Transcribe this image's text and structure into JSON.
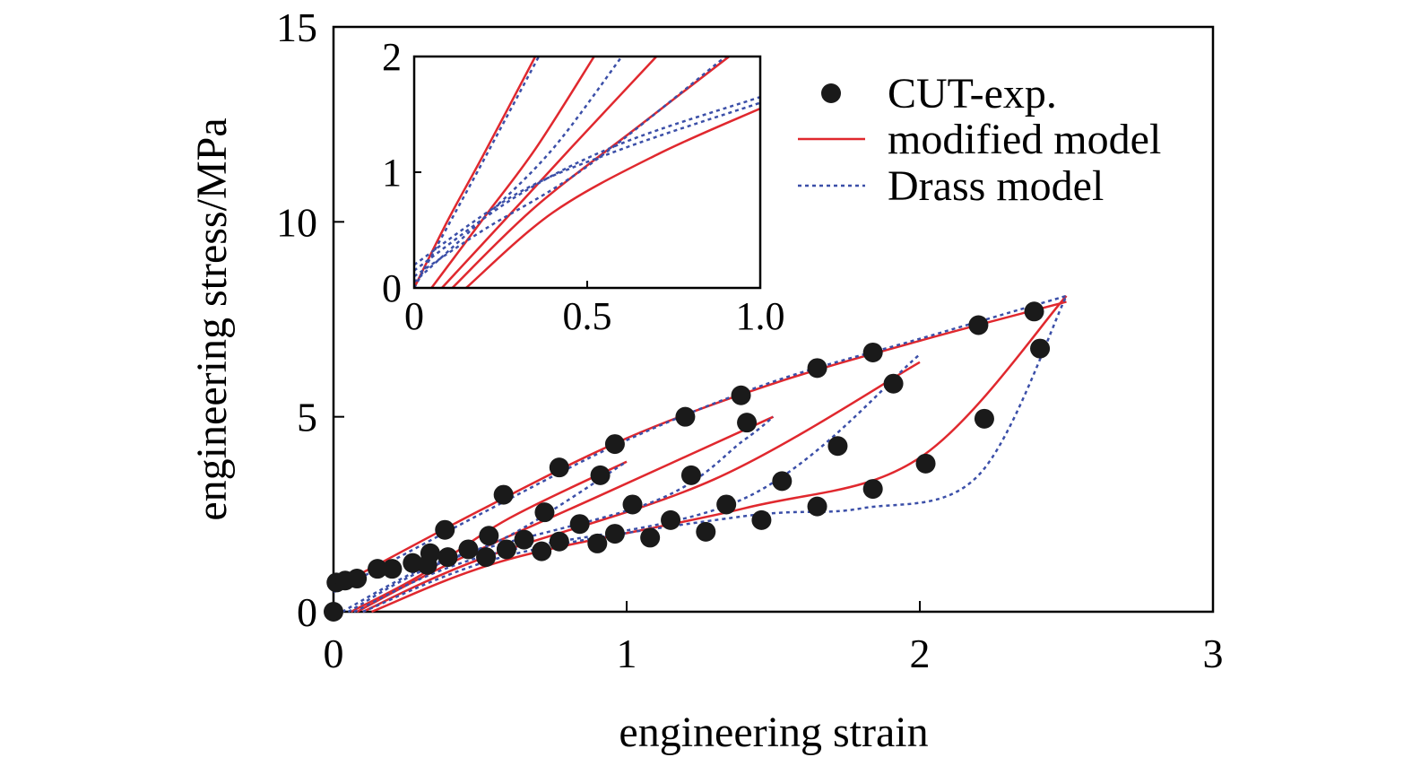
{
  "chart_data": [
    {
      "type": "line",
      "xlabel": "engineering strain",
      "ylabel": "engineering stress/MPa",
      "xlim": [
        0,
        3
      ],
      "ylim": [
        0,
        15
      ],
      "xticks": [
        "0",
        "1",
        "2",
        "3"
      ],
      "yticks": [
        "0",
        "5",
        "10",
        "15"
      ],
      "grid": false,
      "legend_position": "top-right",
      "legend": [
        {
          "label": "CUT-exp.",
          "style": "black filled circles"
        },
        {
          "label": "modified model",
          "style": "solid red line"
        },
        {
          "label": "Drass model",
          "style": "dotted blue line"
        }
      ],
      "colors": {
        "exp": "#1a1a1a",
        "modified": "#e0282e",
        "drass": "#3b4fa8"
      },
      "series": [
        {
          "name": "CUT-exp.",
          "points": [
            [
              0.0,
              0.0
            ],
            [
              0.01,
              0.75
            ],
            [
              0.04,
              0.8
            ],
            [
              0.08,
              0.85
            ],
            [
              0.15,
              1.1
            ],
            [
              0.2,
              1.1
            ],
            [
              0.27,
              1.25
            ],
            [
              0.33,
              1.5
            ],
            [
              0.32,
              1.2
            ],
            [
              0.39,
              1.4
            ],
            [
              0.38,
              2.1
            ],
            [
              0.46,
              1.6
            ],
            [
              0.52,
              1.4
            ],
            [
              0.53,
              1.95
            ],
            [
              0.58,
              3.0
            ],
            [
              0.59,
              1.6
            ],
            [
              0.65,
              1.85
            ],
            [
              0.71,
              1.55
            ],
            [
              0.72,
              2.55
            ],
            [
              0.77,
              1.8
            ],
            [
              0.77,
              3.7
            ],
            [
              0.84,
              2.25
            ],
            [
              0.9,
              1.75
            ],
            [
              0.91,
              3.5
            ],
            [
              0.96,
              2.0
            ],
            [
              0.96,
              4.3
            ],
            [
              1.02,
              2.75
            ],
            [
              1.08,
              1.9
            ],
            [
              1.15,
              2.35
            ],
            [
              1.2,
              5.0
            ],
            [
              1.22,
              3.5
            ],
            [
              1.27,
              2.05
            ],
            [
              1.34,
              2.75
            ],
            [
              1.39,
              5.55
            ],
            [
              1.41,
              4.85
            ],
            [
              1.46,
              2.35
            ],
            [
              1.53,
              3.35
            ],
            [
              1.65,
              2.7
            ],
            [
              1.65,
              6.25
            ],
            [
              1.72,
              4.25
            ],
            [
              1.84,
              3.15
            ],
            [
              1.84,
              6.65
            ],
            [
              1.91,
              5.85
            ],
            [
              2.02,
              3.8
            ],
            [
              2.2,
              7.35
            ],
            [
              2.22,
              4.95
            ],
            [
              2.39,
              7.7
            ],
            [
              2.41,
              6.75
            ]
          ]
        },
        {
          "name": "modified model",
          "curves": [
            [
              [
                0,
                0.6
              ],
              [
                0.5,
                2.6
              ],
              [
                1.0,
                4.45
              ],
              [
                1.5,
                5.85
              ],
              [
                2.0,
                6.95
              ],
              [
                2.5,
                7.95
              ]
            ],
            [
              [
                0.06,
                0
              ],
              [
                0.3,
                0.95
              ],
              [
                0.6,
                2.4
              ],
              [
                1.0,
                3.85
              ]
            ],
            [
              [
                0.08,
                0
              ],
              [
                0.4,
                1.25
              ],
              [
                0.9,
                2.95
              ],
              [
                1.5,
                5.0
              ]
            ],
            [
              [
                0.1,
                0
              ],
              [
                0.5,
                1.35
              ],
              [
                1.3,
                3.4
              ],
              [
                2.0,
                6.4
              ]
            ],
            [
              [
                0.13,
                0
              ],
              [
                0.6,
                1.35
              ],
              [
                1.4,
                2.65
              ],
              [
                2.0,
                3.95
              ],
              [
                2.5,
                8.1
              ]
            ]
          ]
        },
        {
          "name": "Drass model",
          "curves": [
            [
              [
                0,
                0.5
              ],
              [
                0.5,
                2.5
              ],
              [
                1.0,
                4.4
              ],
              [
                1.5,
                5.9
              ],
              [
                2.0,
                7.0
              ],
              [
                2.5,
                8.1
              ]
            ],
            [
              [
                0.03,
                0
              ],
              [
                0.3,
                1.1
              ],
              [
                0.6,
                1.95
              ],
              [
                1.0,
                3.85
              ]
            ],
            [
              [
                0.05,
                0
              ],
              [
                0.4,
                1.35
              ],
              [
                1.1,
                2.85
              ],
              [
                1.4,
                4.4
              ],
              [
                1.5,
                5.0
              ]
            ],
            [
              [
                0.07,
                0
              ],
              [
                0.5,
                1.4
              ],
              [
                1.4,
                2.9
              ],
              [
                2.0,
                6.6
              ]
            ],
            [
              [
                0.1,
                0
              ],
              [
                0.6,
                1.45
              ],
              [
                1.4,
                2.45
              ],
              [
                1.8,
                2.65
              ],
              [
                2.2,
                3.5
              ],
              [
                2.5,
                8.1
              ]
            ]
          ]
        }
      ]
    },
    {
      "type": "line",
      "role": "inset",
      "xlim": [
        0,
        1.0
      ],
      "ylim": [
        0,
        2
      ],
      "xticks": [
        "0",
        "0.5",
        "1.0"
      ],
      "yticks": [
        "0",
        "1",
        "2"
      ],
      "series": [
        {
          "name": "modified model",
          "curves": [
            [
              [
                0,
                0
              ],
              [
                0.1,
                0.6
              ],
              [
                0.2,
                1.15
              ],
              [
                0.35,
                2.0
              ]
            ],
            [
              [
                0.05,
                0
              ],
              [
                0.2,
                0.6
              ],
              [
                0.35,
                1.2
              ],
              [
                0.52,
                2.0
              ]
            ],
            [
              [
                0.08,
                0
              ],
              [
                0.25,
                0.55
              ],
              [
                0.45,
                1.2
              ],
              [
                0.7,
                2.0
              ]
            ],
            [
              [
                0.11,
                0
              ],
              [
                0.35,
                0.7
              ],
              [
                0.65,
                1.4
              ],
              [
                0.91,
                2.0
              ]
            ],
            [
              [
                0.15,
                0
              ],
              [
                0.4,
                0.65
              ],
              [
                0.7,
                1.15
              ],
              [
                1.0,
                1.55
              ]
            ]
          ]
        },
        {
          "name": "Drass model",
          "curves": [
            [
              [
                0,
                0
              ],
              [
                0.1,
                0.55
              ],
              [
                0.2,
                1.1
              ],
              [
                0.36,
                2.0
              ]
            ],
            [
              [
                0,
                0.05
              ],
              [
                0.2,
                0.6
              ],
              [
                0.4,
                1.2
              ],
              [
                0.6,
                2.0
              ]
            ],
            [
              [
                0,
                0.1
              ],
              [
                0.2,
                0.5
              ],
              [
                0.5,
                1.05
              ],
              [
                0.9,
                2.0
              ]
            ],
            [
              [
                0,
                0.15
              ],
              [
                0.3,
                0.8
              ],
              [
                0.6,
                1.25
              ],
              [
                1.0,
                1.65
              ]
            ],
            [
              [
                0,
                0.2
              ],
              [
                0.3,
                0.82
              ],
              [
                0.6,
                1.2
              ],
              [
                1.0,
                1.6
              ]
            ]
          ]
        }
      ]
    }
  ]
}
